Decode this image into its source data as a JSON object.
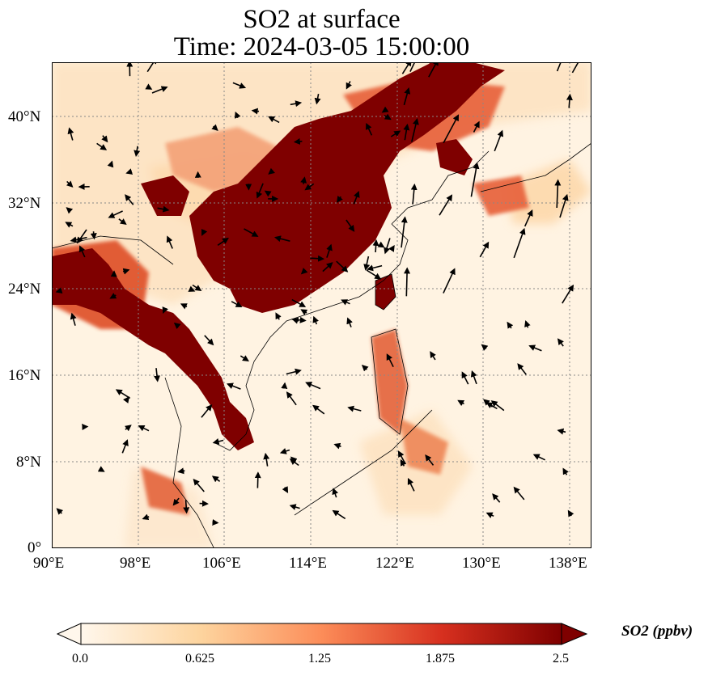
{
  "title": {
    "line1": "SO2 at surface",
    "line2": "Time: 2024-03-05 15:00:00"
  },
  "map": {
    "lon_range": [
      90,
      140
    ],
    "lat_range": [
      0,
      45
    ],
    "lon_ticks": [
      "90°E",
      "98°E",
      "106°E",
      "114°E",
      "122°E",
      "130°E",
      "138°E"
    ],
    "lon_tick_values": [
      90,
      98,
      106,
      114,
      122,
      130,
      138
    ],
    "lat_ticks": [
      "0°",
      "8°N",
      "16°N",
      "24°N",
      "32°N",
      "40°N"
    ],
    "lat_tick_values": [
      0,
      8,
      16,
      24,
      32,
      40
    ],
    "gridlines": "dotted",
    "vectors": "wind arrows"
  },
  "colorbar": {
    "label": "SO2 (ppbv)",
    "min": 0.0,
    "max": 2.5,
    "ticks": [
      "0.0",
      "0.625",
      "1.25",
      "1.875",
      "2.5"
    ],
    "colormap": [
      "#fff7ec",
      "#fdd49e",
      "#fc8d59",
      "#d7301f",
      "#7f0000"
    ],
    "extend": "both"
  },
  "colors": {
    "high": "#7f0000",
    "mid": "#d7301f",
    "low": "#fdd49e",
    "background": "#fff7ec"
  }
}
